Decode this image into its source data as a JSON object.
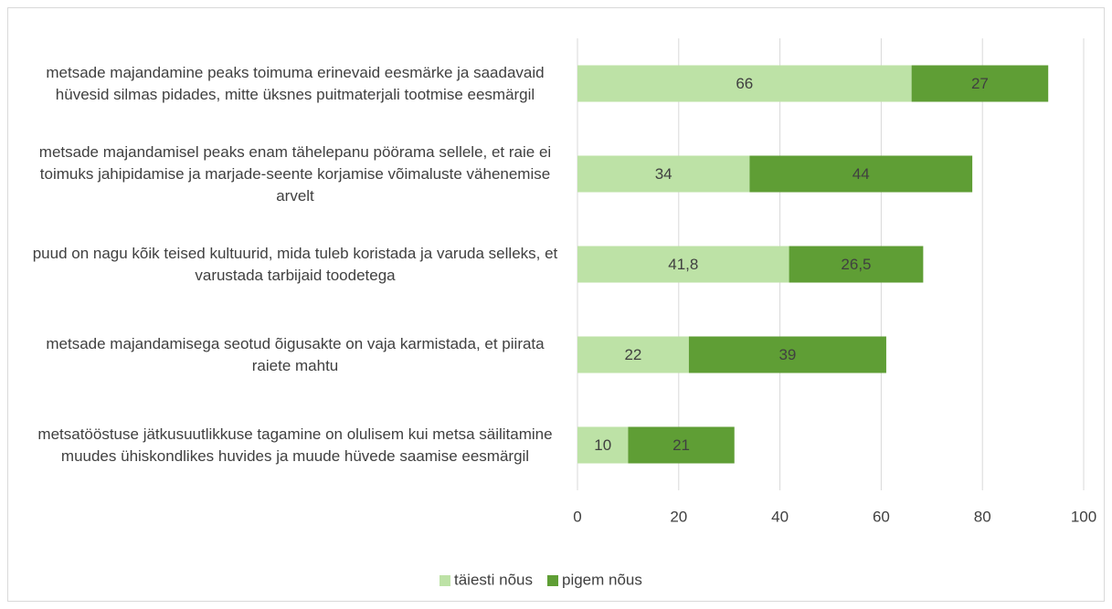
{
  "chart_data": {
    "type": "bar",
    "orientation": "horizontal",
    "stacked": true,
    "categories": [
      "metsade majandamine peaks toimuma erinevaid eesmärke ja saadavaid hüvesid silmas pidades, mitte üksnes puitmaterjali tootmise eesmärgil",
      "metsade majandamisel peaks enam tähelepanu pöörama sellele, et raie ei toimuks jahipidamise ja marjade-seente korjamise võimaluste vähenemise arvelt",
      "puud on nagu kõik teised kultuurid, mida tuleb koristada ja varuda selleks, et varustada tarbijaid toodetega",
      "metsade majandamisega seotud õigusakte on vaja karmistada, et piirata raiete mahtu",
      "metsatööstuse jätkusuutlikkuse tagamine on olulisem kui metsa säilitamine muudes ühiskondlikes huvides ja muude hüvede saamise eesmärgil"
    ],
    "series": [
      {
        "name": "täiesti nõus",
        "color": "#bde2a6",
        "values": [
          66,
          34,
          41.8,
          22,
          10
        ],
        "value_labels": [
          "66",
          "34",
          "41,8",
          "22",
          "10"
        ]
      },
      {
        "name": "pigem nõus",
        "color": "#5f9e35",
        "values": [
          27,
          44,
          26.5,
          39,
          21
        ],
        "value_labels": [
          "27",
          "44",
          "26,5",
          "39",
          "21"
        ]
      }
    ],
    "xlim": [
      0,
      100
    ],
    "xticks": [
      0,
      20,
      40,
      60,
      80,
      100
    ],
    "grid": true,
    "legend": "bottom"
  }
}
